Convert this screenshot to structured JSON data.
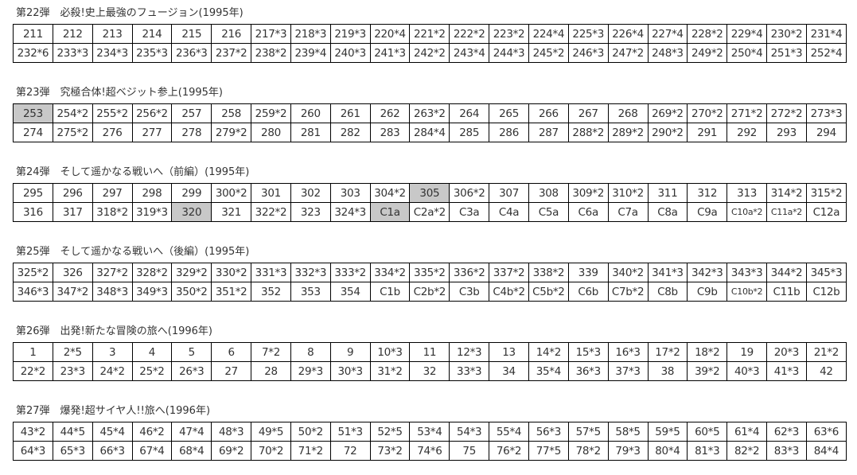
{
  "highlight_color": "#c8c8c8",
  "sections": [
    {
      "title": "第22弾　必殺!史上最強のフュージョン(1995年)",
      "rows": [
        [
          "211",
          "212",
          "213",
          "214",
          "215",
          "216",
          "217*3",
          "218*3",
          "219*3",
          "220*4",
          "221*2",
          "222*2",
          "223*2",
          "224*4",
          "225*3",
          "226*4",
          "227*4",
          "228*2",
          "229*4",
          "230*2",
          "231*4"
        ],
        [
          "232*6",
          "233*3",
          "234*3",
          "235*3",
          "236*3",
          "237*2",
          "238*2",
          "239*4",
          "240*3",
          "241*3",
          "242*2",
          "243*4",
          "244*3",
          "245*2",
          "246*3",
          "247*2",
          "248*3",
          "249*2",
          "250*4",
          "251*3",
          "252*4"
        ]
      ],
      "highlighted": []
    },
    {
      "title": "第23弾　究極合体!超ベジット参上(1995年)",
      "rows": [
        [
          "253",
          "254*2",
          "255*2",
          "256*2",
          "257",
          "258",
          "259*2",
          "260",
          "261",
          "262",
          "263*2",
          "264",
          "265",
          "266",
          "267",
          "268",
          "269*2",
          "270*2",
          "271*2",
          "272*2",
          "273*3"
        ],
        [
          "274",
          "275*2",
          "276",
          "277",
          "278",
          "279*2",
          "280",
          "281",
          "282",
          "283",
          "284*4",
          "285",
          "286",
          "287",
          "288*2",
          "289*2",
          "290*2",
          "291",
          "292",
          "293",
          "294"
        ]
      ],
      "highlighted": [
        "253"
      ]
    },
    {
      "title": "第24弾　そして遥かなる戦いへ（前編）(1995年)",
      "rows": [
        [
          "295",
          "296",
          "297",
          "298",
          "299",
          "300*2",
          "301",
          "302",
          "303",
          "304*2",
          "305",
          "306*2",
          "307",
          "308",
          "309*2",
          "310*2",
          "311",
          "312",
          "313",
          "314*2",
          "315*2"
        ],
        [
          "316",
          "317",
          "318*2",
          "319*3",
          "320",
          "321",
          "322*2",
          "323",
          "324*3",
          "C1a",
          "C2a*2",
          "C3a",
          "C4a",
          "C5a",
          "C6a",
          "C7a",
          "C8a",
          "C9a",
          "C10a*2",
          "C11a*2",
          "C12a"
        ]
      ],
      "highlighted": [
        "305",
        "320",
        "C1a"
      ]
    },
    {
      "title": "第25弾　そして遥かなる戦いへ（後編）(1995年)",
      "rows": [
        [
          "325*2",
          "326",
          "327*2",
          "328*2",
          "329*2",
          "330*2",
          "331*3",
          "332*3",
          "333*2",
          "334*2",
          "335*2",
          "336*2",
          "337*2",
          "338*2",
          "339",
          "340*2",
          "341*3",
          "342*3",
          "343*3",
          "344*2",
          "345*3"
        ],
        [
          "346*3",
          "347*2",
          "348*3",
          "349*3",
          "350*2",
          "351*2",
          "352",
          "353",
          "354",
          "C1b",
          "C2b*2",
          "C3b",
          "C4b*2",
          "C5b*2",
          "C6b",
          "C7b*2",
          "C8b",
          "C9b",
          "C10b*2",
          "C11b",
          "C12b"
        ]
      ],
      "highlighted": []
    },
    {
      "title": "第26弾　出発!新たな冒険の旅へ(1996年)",
      "rows": [
        [
          "1",
          "2*5",
          "3",
          "4",
          "5",
          "6",
          "7*2",
          "8",
          "9",
          "10*3",
          "11",
          "12*3",
          "13",
          "14*2",
          "15*3",
          "16*3",
          "17*2",
          "18*2",
          "19",
          "20*3",
          "21*2"
        ],
        [
          "22*2",
          "23*3",
          "24*2",
          "25*2",
          "26*3",
          "27",
          "28",
          "29*3",
          "30*3",
          "31*2",
          "32",
          "33*3",
          "34",
          "35*4",
          "36*3",
          "37*3",
          "38",
          "39*2",
          "40*3",
          "41*3",
          "42"
        ]
      ],
      "highlighted": []
    },
    {
      "title": "第27弾　爆発!超サイヤ人!!旅へ(1996年)",
      "rows": [
        [
          "43*2",
          "44*5",
          "45*4",
          "46*2",
          "47*4",
          "48*3",
          "49*5",
          "50*2",
          "51*3",
          "52*5",
          "53*4",
          "54*3",
          "55*4",
          "56*3",
          "57*5",
          "58*5",
          "59*5",
          "60*5",
          "61*4",
          "62*3",
          "63*6"
        ],
        [
          "64*3",
          "65*3",
          "66*3",
          "67*4",
          "68*4",
          "69*2",
          "70*2",
          "71*2",
          "72",
          "73*2",
          "74*6",
          "75",
          "76*2",
          "77*5",
          "78*2",
          "79*3",
          "80*4",
          "81*3",
          "82*2",
          "83*3",
          "84*4"
        ]
      ],
      "highlighted": []
    }
  ]
}
